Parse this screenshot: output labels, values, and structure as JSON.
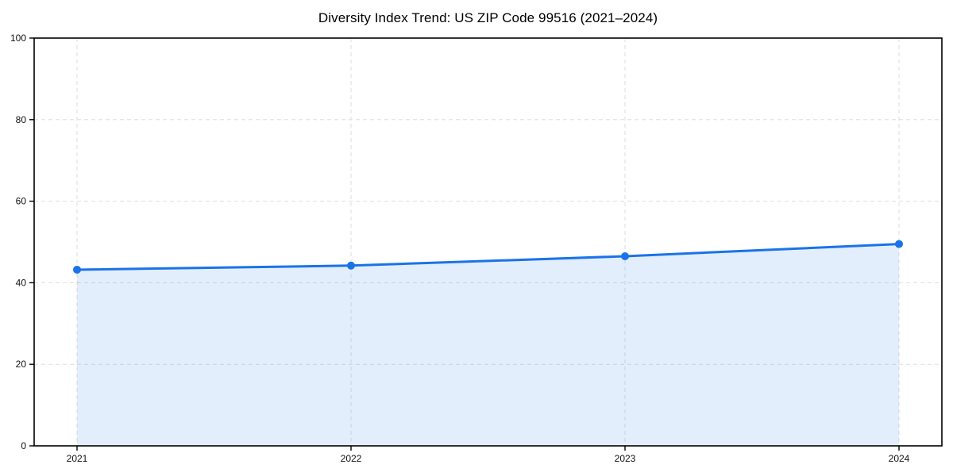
{
  "chart_data": {
    "type": "area",
    "title": "Diversity Index Trend: US ZIP Code 99516 (2021–2024)",
    "x": [
      2021,
      2022,
      2023,
      2024
    ],
    "categories": [
      "2021",
      "2022",
      "2023",
      "2024"
    ],
    "series": [
      {
        "name": "Diversity Index",
        "values": [
          43.2,
          44.2,
          46.5,
          49.5
        ]
      }
    ],
    "xlabel": "",
    "ylabel": "",
    "ylim": [
      0,
      100
    ],
    "yticks": [
      0,
      20,
      40,
      60,
      80,
      100
    ],
    "grid": true,
    "grid_style": "dashed",
    "legend_position": "none",
    "colors": {
      "line": "#1a73e8",
      "marker": "#1a73e8",
      "fill": "rgba(26,115,232,0.12)",
      "grid": "#dedede",
      "axis": "#000000",
      "tick_text": "#111111",
      "background": "#ffffff"
    }
  }
}
